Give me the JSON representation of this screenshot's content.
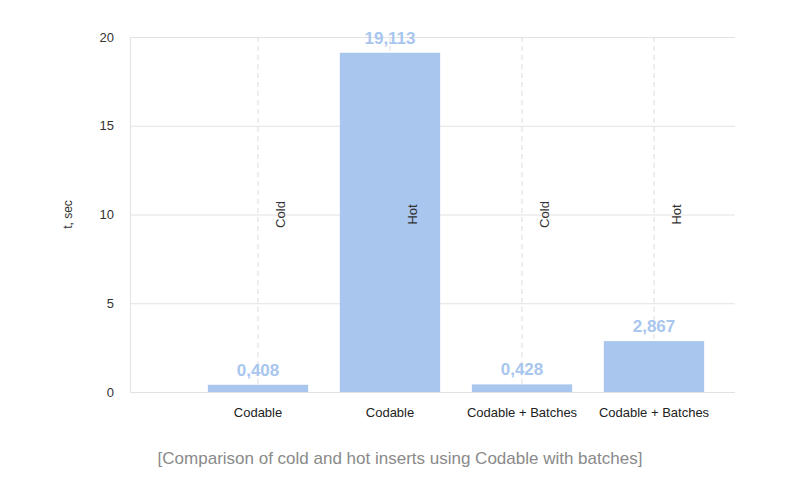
{
  "chart_data": {
    "type": "bar",
    "title": "[Comparison of cold and hot inserts using Codable with batches]",
    "y_label": "t, sec",
    "categories": [
      "Codable",
      "Codable",
      "Codable + Batches",
      "Codable + Batches"
    ],
    "annotations": [
      "Cold",
      "Hot",
      "Cold",
      "Hot"
    ],
    "values": [
      0.408,
      19.113,
      0.428,
      2.867
    ],
    "value_labels": [
      "0,408",
      "19,113",
      "0,428",
      "2,867"
    ],
    "data_labels": true,
    "color": "#a8c6ee",
    "ylim": [
      0,
      20
    ],
    "yticks": [
      0,
      5,
      10,
      15,
      20
    ],
    "grid": true
  }
}
